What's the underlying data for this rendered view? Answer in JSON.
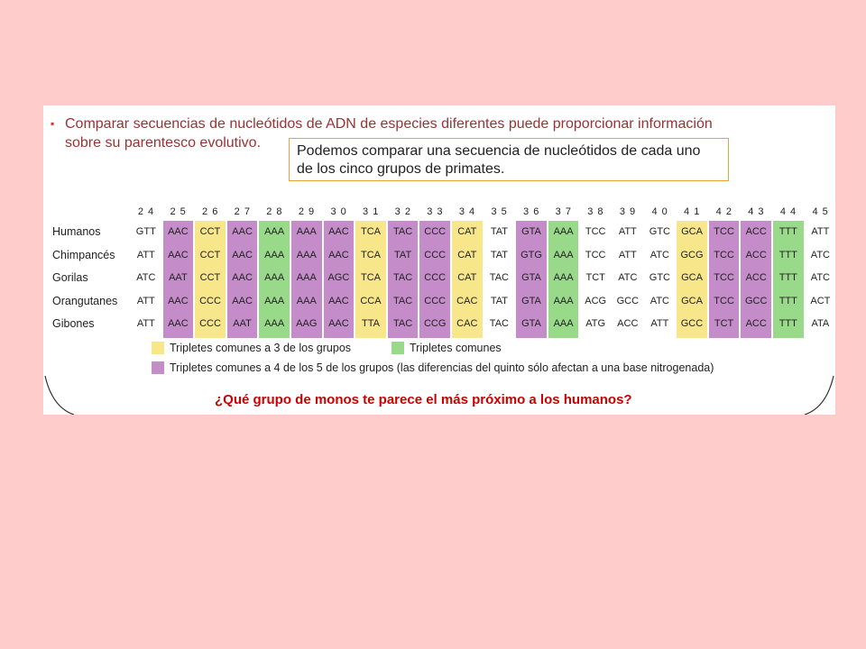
{
  "intro": {
    "bullet": "▪",
    "line1": "Comparar secuencias de nucleótidos de ADN de especies diferentes puede proporcionar información",
    "line2": "sobre su parentesco evolutivo."
  },
  "callout": {
    "line1": "Podemos comparar una secuencia de nucleótidos de cada uno",
    "line2": "de los cinco grupos de primates."
  },
  "colors": {
    "yellow": "#f7e68a",
    "green": "#99d98a",
    "purple": "#c48cc8",
    "red": "#cc0000",
    "brown": "#993333",
    "orange": "#e8a33a"
  },
  "table": {
    "columns": [
      "2 4",
      "2 5",
      "2 6",
      "2 7",
      "2 8",
      "2 9",
      "3 0",
      "3 1",
      "3 2",
      "3 3",
      "3 4",
      "3 5",
      "3 6",
      "3 7",
      "3 8",
      "3 9",
      "4 0",
      "4 1",
      "4 2",
      "4 3",
      "4 4",
      "4 5"
    ],
    "column_colors": [
      "none",
      "purple",
      "yellow",
      "purple",
      "green",
      "purple",
      "purple",
      "yellow",
      "purple",
      "purple",
      "yellow",
      "none",
      "purple",
      "green",
      "none",
      "none",
      "none",
      "yellow",
      "purple",
      "purple",
      "green",
      "none"
    ],
    "rows": [
      {
        "label": "Humanos",
        "cells": [
          "GTT",
          "AAC",
          "CCT",
          "AAC",
          "AAA",
          "AAA",
          "AAC",
          "TCA",
          "TAC",
          "CCC",
          "CAT",
          "TAT",
          "GTA",
          "AAA",
          "TCC",
          "ATT",
          "GTC",
          "GCA",
          "TCC",
          "ACC",
          "TTT",
          "ATT"
        ]
      },
      {
        "label": "Chimpancés",
        "cells": [
          "ATT",
          "AAC",
          "CCT",
          "AAC",
          "AAA",
          "AAA",
          "AAC",
          "TCA",
          "TAT",
          "CCC",
          "CAT",
          "TAT",
          "GTG",
          "AAA",
          "TCC",
          "ATT",
          "ATC",
          "GCG",
          "TCC",
          "ACC",
          "TTT",
          "ATC"
        ]
      },
      {
        "label": "Gorilas",
        "cells": [
          "ATC",
          "AAT",
          "CCT",
          "AAC",
          "AAA",
          "AAA",
          "AGC",
          "TCA",
          "TAC",
          "CCC",
          "CAT",
          "TAC",
          "GTA",
          "AAA",
          "TCT",
          "ATC",
          "GTC",
          "GCA",
          "TCC",
          "ACC",
          "TTT",
          "ATC"
        ]
      },
      {
        "label": "Orangutanes",
        "cells": [
          "ATT",
          "AAC",
          "CCC",
          "AAC",
          "AAA",
          "AAA",
          "AAC",
          "CCA",
          "TAC",
          "CCC",
          "CAC",
          "TAT",
          "GTA",
          "AAA",
          "ACG",
          "GCC",
          "ATC",
          "GCA",
          "TCC",
          "GCC",
          "TTT",
          "ACT"
        ]
      },
      {
        "label": "Gibones",
        "cells": [
          "ATT",
          "AAC",
          "CCC",
          "AAT",
          "AAA",
          "AAG",
          "AAC",
          "TTA",
          "TAC",
          "CCG",
          "CAC",
          "TAC",
          "GTA",
          "AAA",
          "ATG",
          "ACC",
          "ATT",
          "GCC",
          "TCT",
          "ACC",
          "TTT",
          "ATA"
        ]
      }
    ]
  },
  "legend": {
    "yellow_label": "Tripletes comunes a 3 de los grupos",
    "green_label": "Tripletes comunes",
    "purple_label": "Tripletes comunes a 4 de los 5 de los grupos (las diferencias del quinto sólo afectan a una base nitrogenada)"
  },
  "question": "¿Qué grupo de monos te parece el más próximo a los humanos?"
}
